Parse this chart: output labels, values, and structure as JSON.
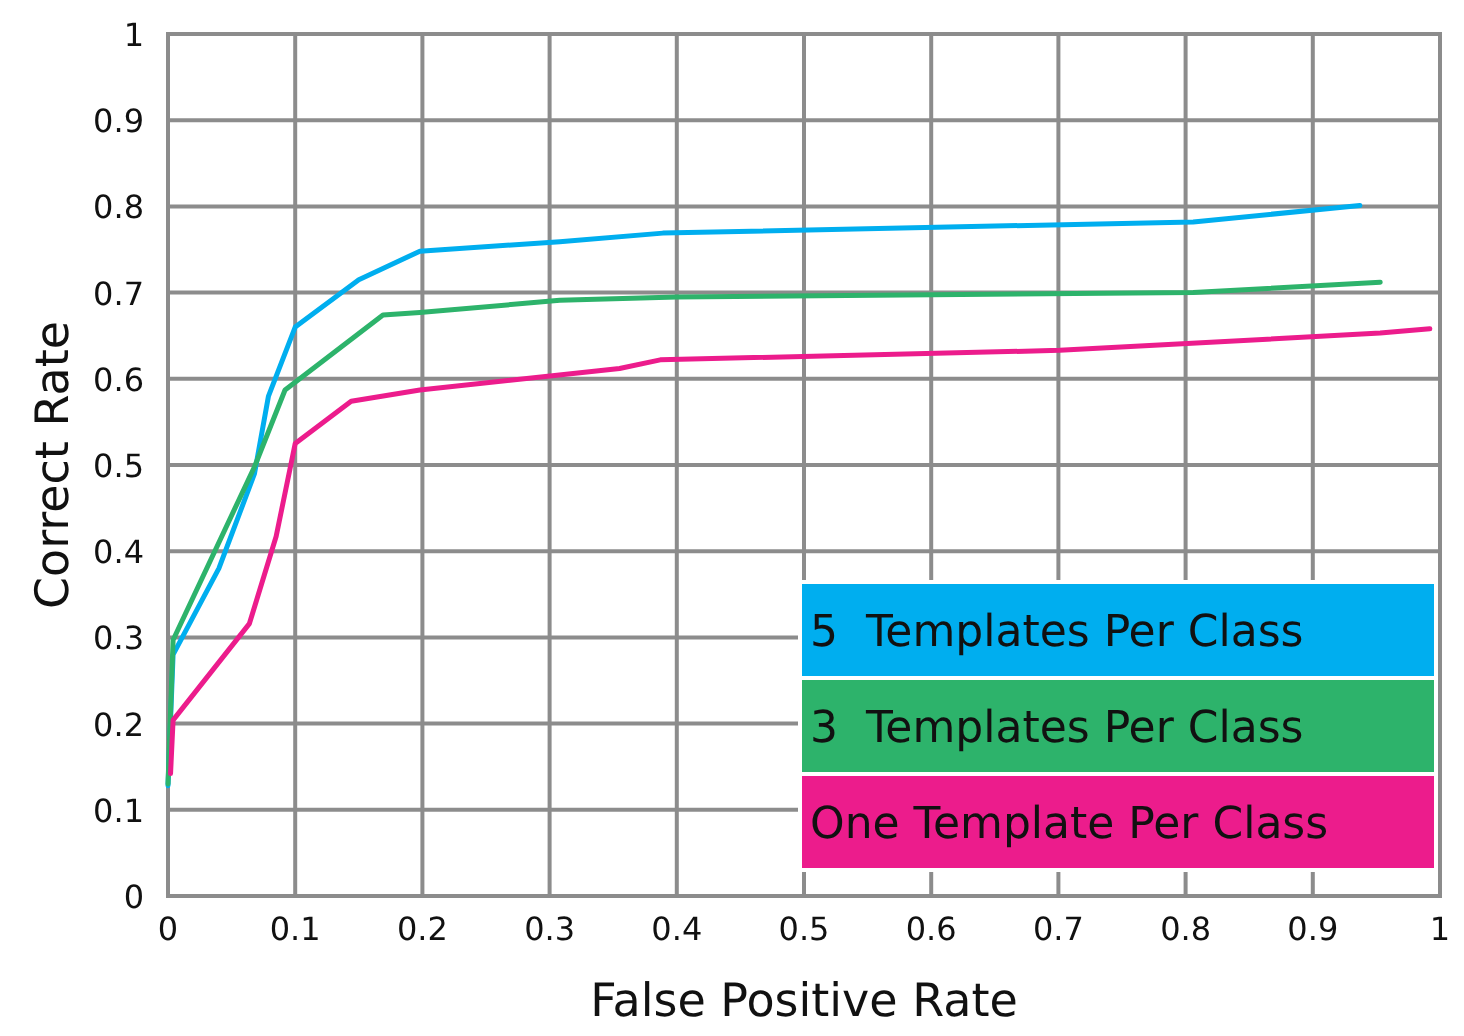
{
  "chart_data": {
    "type": "line",
    "xlabel": "False Positive Rate",
    "ylabel": "Correct Rate",
    "xlim": [
      0,
      1
    ],
    "ylim": [
      0,
      1
    ],
    "xticks": [
      0,
      0.1,
      0.2,
      0.3,
      0.4,
      0.5,
      0.6,
      0.7,
      0.8,
      0.9,
      1
    ],
    "yticks": [
      0,
      0.1,
      0.2,
      0.3,
      0.4,
      0.5,
      0.6,
      0.7,
      0.8,
      0.9,
      1
    ],
    "grid": true,
    "legend": "bottom right",
    "marker": "none",
    "line_style": "solid",
    "series": [
      {
        "name": "5  Templates Per Class",
        "color": "#00aeef",
        "x": [
          0,
          0.004,
          0.04,
          0.068,
          0.079,
          0.1,
          0.15,
          0.198,
          0.308,
          0.389,
          0.806,
          0.937
        ],
        "values": [
          0.128,
          0.28,
          0.38,
          0.49,
          0.58,
          0.66,
          0.715,
          0.748,
          0.759,
          0.769,
          0.782,
          0.801
        ]
      },
      {
        "name": "3  Templates Per Class",
        "color": "#2db36b",
        "x": [
          0,
          0.004,
          0.068,
          0.092,
          0.169,
          0.198,
          0.308,
          0.4,
          0.806,
          0.953
        ],
        "values": [
          0.13,
          0.297,
          0.498,
          0.587,
          0.674,
          0.677,
          0.691,
          0.695,
          0.7,
          0.712
        ]
      },
      {
        "name": "One Template Per Class",
        "color": "#ec1c8c",
        "x": [
          0.002,
          0.004,
          0.064,
          0.085,
          0.1,
          0.144,
          0.198,
          0.355,
          0.387,
          0.701,
          0.953,
          0.992
        ],
        "values": [
          0.142,
          0.204,
          0.316,
          0.417,
          0.525,
          0.574,
          0.587,
          0.612,
          0.622,
          0.633,
          0.653,
          0.658
        ]
      }
    ]
  }
}
